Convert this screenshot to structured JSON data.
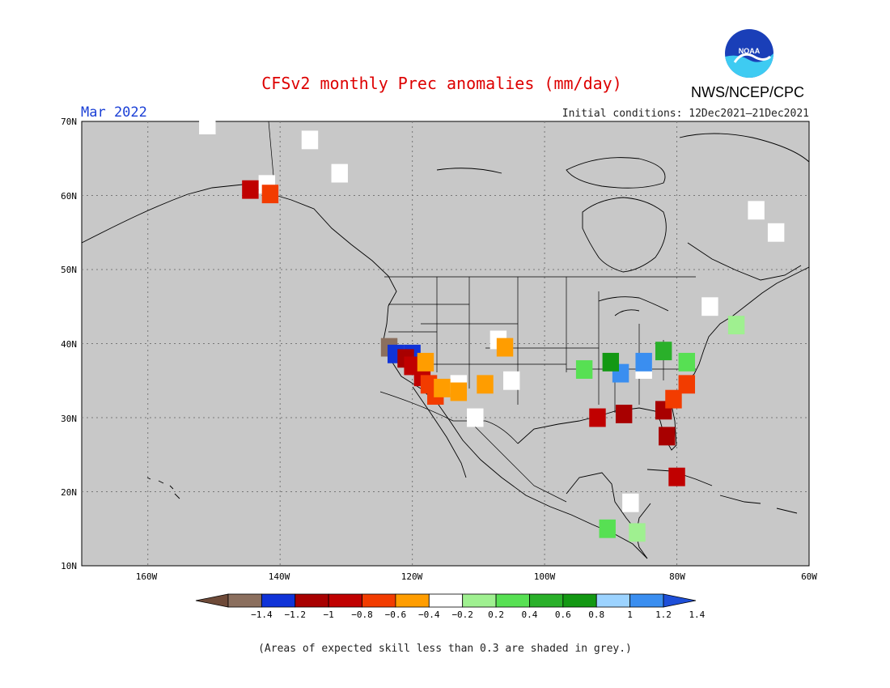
{
  "title": "CFSv2 monthly Prec anomalies (mm/day)",
  "title_color": "#dd0000",
  "agency": "NWS/NCEP/CPC",
  "logo_text": "NOAA",
  "valid_month": "Mar 2022",
  "valid_month_color": "#1a3fd6",
  "initial_conditions": "Initial conditions: 12Dec2021–21Dec2021",
  "footnote": "(Areas of expected skill less than 0.3 are shaded in grey.)",
  "map": {
    "background": "#c8c8c8",
    "lat_labels": [
      "70N",
      "60N",
      "50N",
      "40N",
      "30N",
      "20N",
      "10N"
    ],
    "lon_labels": [
      "160W",
      "140W",
      "120W",
      "100W",
      "80W",
      "60W"
    ]
  },
  "colorbar": {
    "tick_labels": [
      "−1.4",
      "−1.2",
      "−1",
      "−0.8",
      "−0.6",
      "−0.4",
      "−0.2",
      "0.2",
      "0.4",
      "0.6",
      "0.8",
      "1",
      "1.2",
      "1.4"
    ],
    "colors": [
      "#6e4a38",
      "#8b6f5e",
      "#1033d8",
      "#a80000",
      "#c00000",
      "#f23c00",
      "#ff9d00",
      "#ffffff",
      "#9ff090",
      "#57e053",
      "#2ab02a",
      "#139813",
      "#9cd3ff",
      "#3a8ef0",
      "#1e4fd8"
    ]
  },
  "anomaly_patches": [
    {
      "lon": -123.5,
      "lat": 39.5,
      "value": -1.3
    },
    {
      "lon": -122.5,
      "lat": 38.6,
      "value": -1.2
    },
    {
      "lon": -120.0,
      "lat": 38.6,
      "value": -1.2
    },
    {
      "lon": -121.0,
      "lat": 38.0,
      "value": -0.9
    },
    {
      "lon": -120.0,
      "lat": 37.0,
      "value": -0.8
    },
    {
      "lon": -118.5,
      "lat": 35.5,
      "value": -0.8
    },
    {
      "lon": -117.5,
      "lat": 34.5,
      "value": -0.6
    },
    {
      "lon": -116.5,
      "lat": 33.0,
      "value": -0.6
    },
    {
      "lon": -118.0,
      "lat": 37.5,
      "value": -0.4
    },
    {
      "lon": -115.5,
      "lat": 34.0,
      "value": -0.3
    },
    {
      "lon": -113.0,
      "lat": 33.5,
      "value": -0.3
    },
    {
      "lon": -109.0,
      "lat": 34.5,
      "value": -0.3
    },
    {
      "lon": -106.0,
      "lat": 39.5,
      "value": -0.3
    },
    {
      "lon": -144.5,
      "lat": 60.8,
      "value": -0.8
    },
    {
      "lon": -141.5,
      "lat": 60.2,
      "value": -0.6
    },
    {
      "lon": -88.0,
      "lat": 30.5,
      "value": -0.9
    },
    {
      "lon": -82.0,
      "lat": 31.0,
      "value": -0.9
    },
    {
      "lon": -81.5,
      "lat": 27.5,
      "value": -0.9
    },
    {
      "lon": -80.5,
      "lat": 32.5,
      "value": -0.6
    },
    {
      "lon": -78.5,
      "lat": 34.5,
      "value": -0.6
    },
    {
      "lon": -80.0,
      "lat": 22.0,
      "value": -0.8
    },
    {
      "lon": -92.0,
      "lat": 30.0,
      "value": -0.8
    },
    {
      "lon": -85.0,
      "lat": 37.5,
      "value": 1.3
    },
    {
      "lon": -88.5,
      "lat": 36.0,
      "value": 1.2
    },
    {
      "lon": -90.0,
      "lat": 37.5,
      "value": 0.9
    },
    {
      "lon": -82.0,
      "lat": 39.0,
      "value": 0.7
    },
    {
      "lon": -78.5,
      "lat": 37.5,
      "value": 0.5
    },
    {
      "lon": -94.0,
      "lat": 36.5,
      "value": 0.5
    },
    {
      "lon": -71.0,
      "lat": 42.5,
      "value": 0.3
    },
    {
      "lon": -90.5,
      "lat": 15.0,
      "value": 0.5
    },
    {
      "lon": -86.0,
      "lat": 14.5,
      "value": 0.3
    }
  ],
  "low_skill_near_zero": [
    {
      "lon": -142.0,
      "lat": 61.5
    },
    {
      "lon": -131.0,
      "lat": 63.0
    },
    {
      "lon": -135.5,
      "lat": 67.5
    },
    {
      "lon": -151.0,
      "lat": 69.5
    },
    {
      "lon": -119.5,
      "lat": 37.5
    },
    {
      "lon": -113.0,
      "lat": 34.5
    },
    {
      "lon": -110.5,
      "lat": 30.0
    },
    {
      "lon": -107.0,
      "lat": 40.5
    },
    {
      "lon": -105.0,
      "lat": 35.0
    },
    {
      "lon": -85.0,
      "lat": 36.5
    },
    {
      "lon": -68.0,
      "lat": 58.0
    },
    {
      "lon": -65.0,
      "lat": 55.0
    },
    {
      "lon": -87.0,
      "lat": 18.5
    },
    {
      "lon": -75.0,
      "lat": 45.0
    }
  ]
}
